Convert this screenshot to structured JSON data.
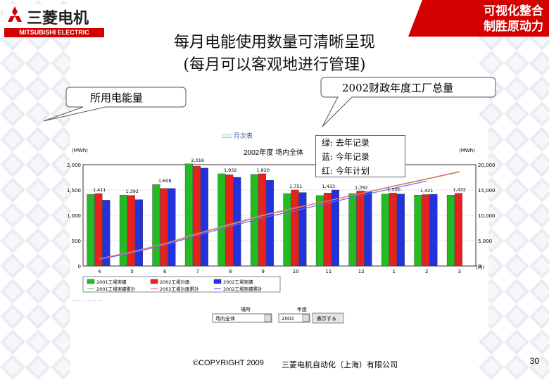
{
  "brand": {
    "cn_name": "三菱电机",
    "en_name": "MITSUBISHI ELECTRIC",
    "slogan_line1": "可视化整合",
    "slogan_line2": "制胜原动力",
    "accent_color": "#d40000"
  },
  "slide": {
    "title_line1": "每月电能使用数量可清晰呈现",
    "title_line2": "(每月可以客观地进行管理)",
    "callout_left": "所用电能量",
    "callout_right": "2002财政年度工厂总量",
    "legend_note": [
      "绿: 去年记录",
      "蓝: 今年记录",
      "红: 今年计划"
    ],
    "footer_copyright": "©COPYRIGHT 2009",
    "footer_company": "三菱电机自动化（上海）有限公司",
    "page_number": "30"
  },
  "screenshot": {
    "chart_title": "2002年度 场内全体",
    "left_axis_unit": "(MWh)",
    "right_axis_unit": "(MWh)",
    "selector1_value": "场内全体",
    "selector2_value": "2002",
    "display_button": "表示する",
    "x_unit": "(月)"
  },
  "chart_data": {
    "type": "bar",
    "categories": [
      "4",
      "5",
      "6",
      "7",
      "8",
      "9",
      "10",
      "11",
      "12",
      "1",
      "2",
      "3"
    ],
    "ylim": [
      0,
      2000
    ],
    "y2lim": [
      0,
      20000
    ],
    "yticks": [
      "0",
      "500",
      "1,000",
      "1,500",
      "2,000"
    ],
    "y2ticks": [
      "0",
      "5,000",
      "10,000",
      "15,000",
      "20,000"
    ],
    "series": [
      {
        "name": "2001工場実績",
        "color": "#22bb22",
        "values": [
          1411,
          1400,
          1608,
          2016,
          1820,
          1810,
          1430,
          1390,
          1430,
          1420,
          1400,
          1400
        ]
      },
      {
        "name": "2002工場計画",
        "color": "#e82020",
        "values": [
          1430,
          1392,
          1530,
          1970,
          1800,
          1820,
          1500,
          1440,
          1480,
          1440,
          1410,
          1435
        ]
      },
      {
        "name": "2002工場実績",
        "color": "#2233dd",
        "values": [
          1300,
          1310,
          1530,
          1932,
          1750,
          1690,
          1450,
          1500,
          1470,
          1420,
          1416,
          null
        ]
      }
    ],
    "cumulative": [
      {
        "name": "2001工場実績累計",
        "color": "#66cc66",
        "values": [
          1411,
          2811,
          4419,
          6435,
          8255,
          10065,
          11495,
          12885,
          14315,
          15735,
          17135,
          18535
        ]
      },
      {
        "name": "2002工場計画累計",
        "color": "#ff6666",
        "values": [
          1430,
          2822,
          4352,
          6322,
          8122,
          9942,
          11442,
          12882,
          14362,
          15802,
          17212,
          18647
        ]
      },
      {
        "name": "2002工場実績累計",
        "color": "#6666ff",
        "values": [
          1300,
          2610,
          4140,
          6072,
          7822,
          9512,
          10962,
          12462,
          13932,
          15352,
          16768,
          null
        ]
      }
    ],
    "data_labels": [
      "1,411",
      "1,392",
      "1,608",
      "2,016",
      "1,932",
      "1,820",
      "1,751",
      "1,433",
      "1,392",
      "1,500",
      "1,421",
      "1,432"
    ]
  }
}
